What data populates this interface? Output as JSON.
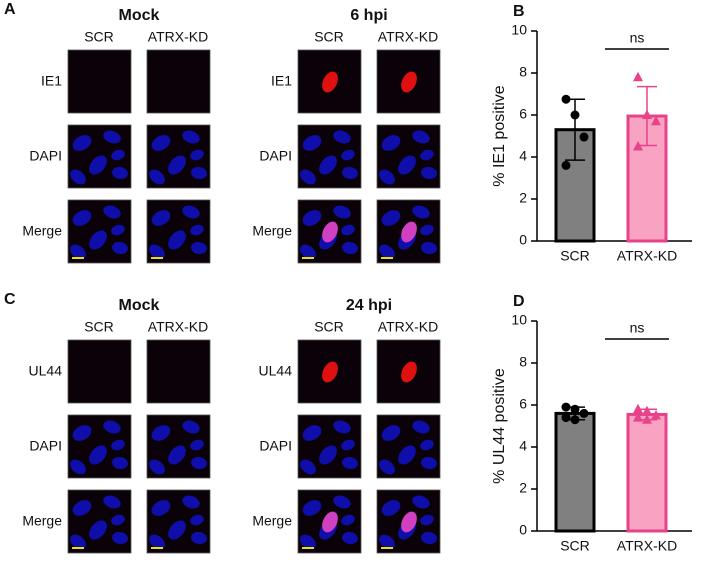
{
  "panels": [
    {
      "letter": "A",
      "groups": [
        {
          "title": "Mock",
          "columns": [
            "SCR",
            "ATRX-KD"
          ],
          "rows": [
            "IE1",
            "DAPI",
            "Merge"
          ]
        },
        {
          "title": "6 hpi",
          "columns": [
            "SCR",
            "ATRX-KD"
          ],
          "rows": [
            "IE1",
            "DAPI",
            "Merge"
          ]
        }
      ]
    },
    {
      "letter": "C",
      "groups": [
        {
          "title": "Mock",
          "columns": [
            "SCR",
            "ATRX-KD"
          ],
          "rows": [
            "UL44",
            "DAPI",
            "Merge"
          ]
        },
        {
          "title": "24 hpi",
          "columns": [
            "SCR",
            "ATRX-KD"
          ],
          "rows": [
            "UL44",
            "DAPI",
            "Merge"
          ]
        }
      ]
    }
  ],
  "chart_data": [
    {
      "type": "bar",
      "letter": "B",
      "ylabel": "% IE1 positive",
      "categories": [
        "SCR",
        "ATRX-KD"
      ],
      "values": [
        5.3,
        5.95
      ],
      "errors": [
        1.45,
        1.4
      ],
      "points": [
        [
          6.75,
          6.0,
          4.95,
          3.6
        ],
        [
          7.8,
          6.0,
          5.7,
          4.5
        ]
      ],
      "colors": [
        "#808080",
        "#f9a3c3"
      ],
      "edge_colors": [
        "#000000",
        "#e8438a"
      ],
      "annotation": "ns",
      "ylim": [
        0,
        10
      ],
      "yticks": [
        0,
        2,
        4,
        6,
        8,
        10
      ]
    },
    {
      "type": "bar",
      "letter": "D",
      "ylabel": "% UL44 positive",
      "categories": [
        "SCR",
        "ATRX-KD"
      ],
      "values": [
        5.6,
        5.55
      ],
      "errors": [
        0.3,
        0.25
      ],
      "points": [
        [
          5.9,
          5.8,
          5.6,
          5.4,
          5.3
        ],
        [
          5.8,
          5.7,
          5.5,
          5.4,
          5.3
        ]
      ],
      "colors": [
        "#808080",
        "#f9a3c3"
      ],
      "edge_colors": [
        "#000000",
        "#e8438a"
      ],
      "annotation": "ns",
      "ylim": [
        0,
        10
      ],
      "yticks": [
        0,
        2,
        4,
        6,
        8,
        10
      ]
    }
  ]
}
